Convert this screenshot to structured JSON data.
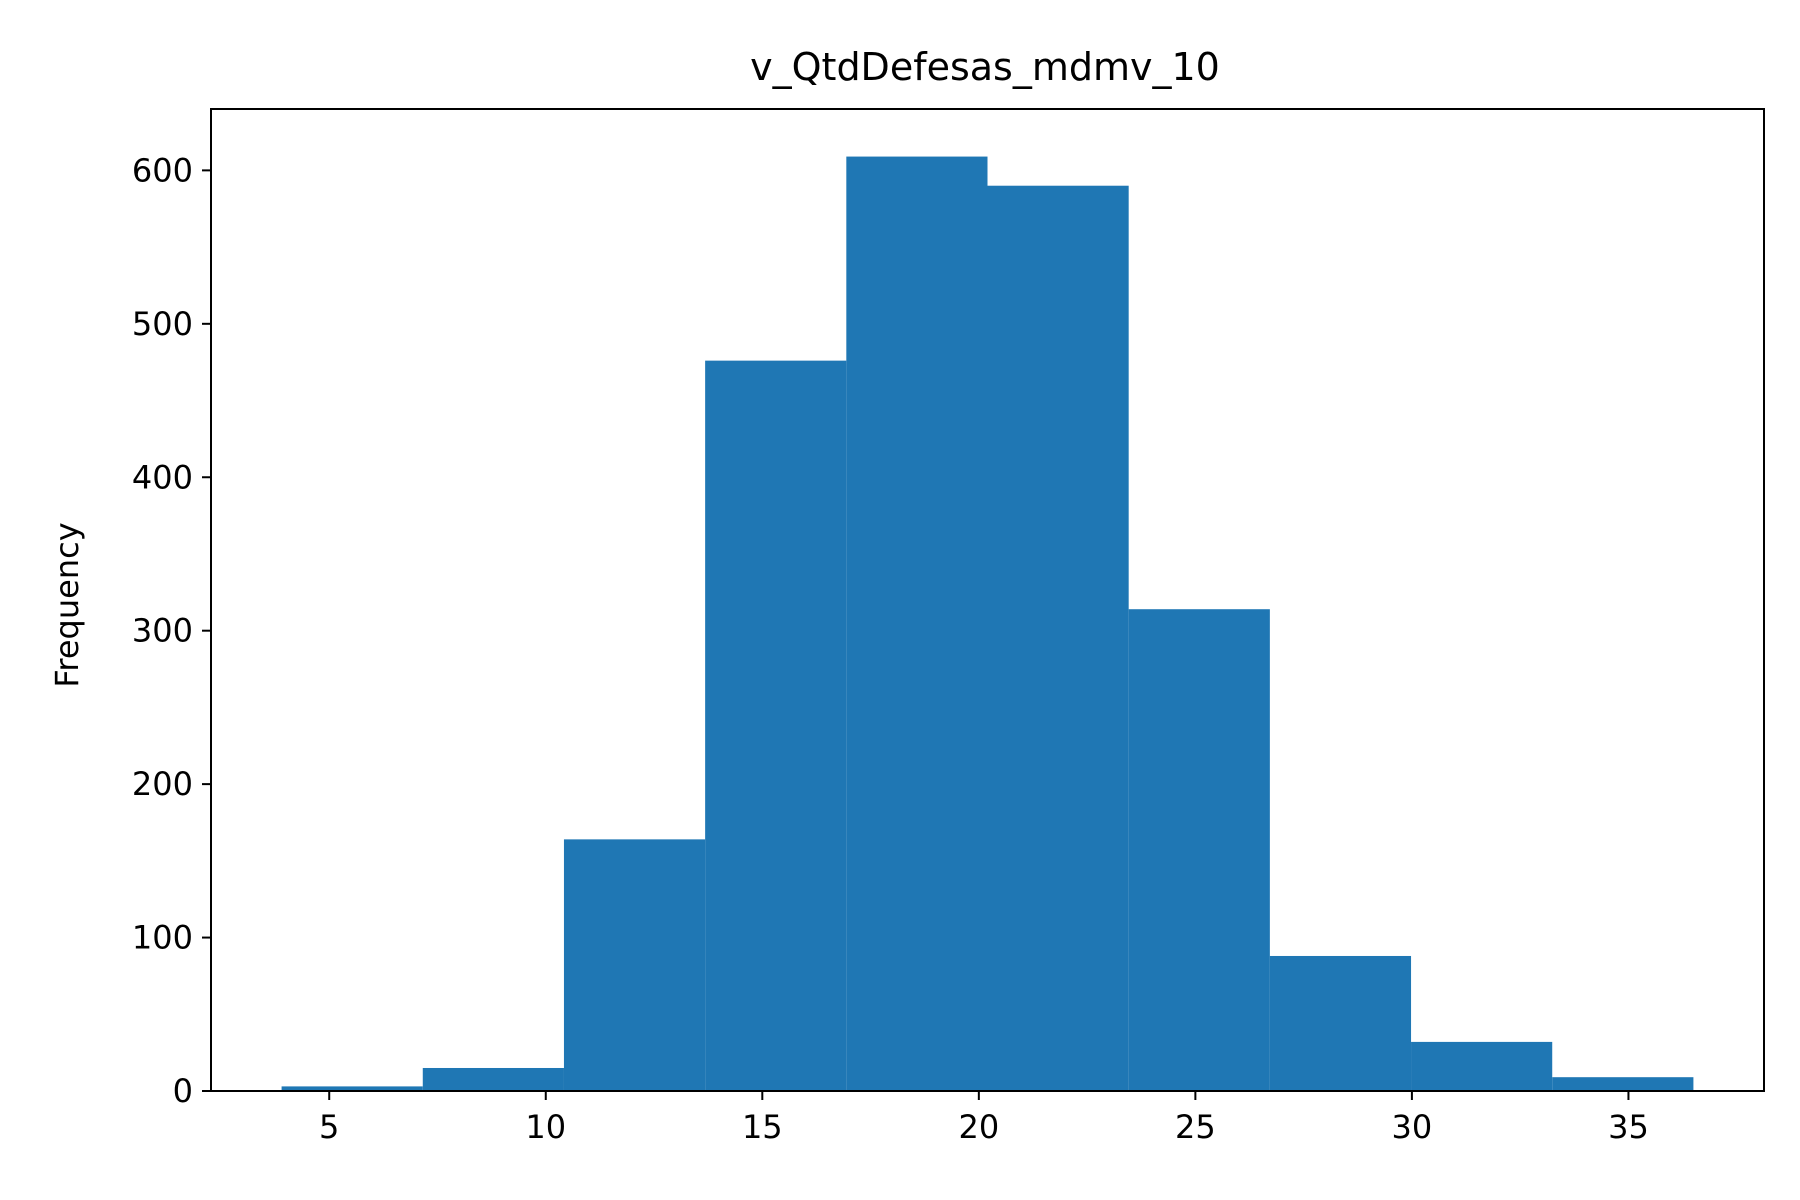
{
  "chart_data": {
    "type": "bar",
    "title": "v_QtdDefesas_mdmv_10",
    "xlabel": "",
    "ylabel": "Frequency",
    "bin_edges": [
      3.9,
      7.16,
      10.42,
      13.68,
      16.94,
      20.2,
      23.46,
      26.72,
      29.98,
      33.24,
      36.5
    ],
    "values": [
      3,
      15,
      164,
      476,
      609,
      590,
      314,
      88,
      32,
      9
    ],
    "xlim": [
      2.27,
      38.13
    ],
    "ylim": [
      0,
      640
    ],
    "xticks": [
      5,
      10,
      15,
      20,
      25,
      30,
      35
    ],
    "yticks": [
      0,
      100,
      200,
      300,
      400,
      500,
      600
    ],
    "bar_color": "#1f77b4",
    "grid": false
  }
}
